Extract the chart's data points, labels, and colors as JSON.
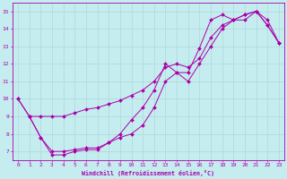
{
  "title": "",
  "xlabel": "Windchill (Refroidissement éolien,°C)",
  "ylabel": "",
  "xlim": [
    -0.5,
    23.5
  ],
  "ylim": [
    6.5,
    15.5
  ],
  "xticks": [
    0,
    1,
    2,
    3,
    4,
    5,
    6,
    7,
    8,
    9,
    10,
    11,
    12,
    13,
    14,
    15,
    16,
    17,
    18,
    19,
    20,
    21,
    22,
    23
  ],
  "yticks": [
    7,
    8,
    9,
    10,
    11,
    12,
    13,
    14,
    15
  ],
  "background_color": "#c5ecee",
  "grid_color": "#aed8dc",
  "line_color": "#aa00aa",
  "line1_x": [
    0,
    1,
    2,
    3,
    4,
    5,
    6,
    7,
    8,
    9,
    10,
    11,
    12,
    13,
    14,
    15,
    16,
    17,
    18,
    19,
    20,
    21,
    22,
    23
  ],
  "line1_y": [
    10.0,
    9.0,
    9.0,
    9.0,
    9.0,
    9.2,
    9.4,
    9.5,
    9.7,
    9.9,
    10.2,
    10.5,
    11.0,
    11.8,
    12.0,
    11.8,
    12.3,
    13.5,
    14.2,
    14.5,
    14.8,
    15.0,
    14.2,
    13.2
  ],
  "line2_x": [
    0,
    1,
    2,
    3,
    4,
    5,
    6,
    7,
    8,
    9,
    10,
    11,
    12,
    13,
    14,
    15,
    16,
    17,
    18,
    19,
    20,
    21,
    22,
    23
  ],
  "line2_y": [
    10.0,
    9.0,
    7.8,
    7.0,
    7.0,
    7.1,
    7.2,
    7.2,
    7.5,
    8.0,
    8.8,
    9.5,
    10.5,
    12.0,
    11.5,
    11.5,
    12.9,
    14.5,
    14.8,
    14.5,
    14.8,
    15.0,
    14.2,
    13.2
  ],
  "line3_x": [
    1,
    2,
    3,
    4,
    5,
    6,
    7,
    8,
    9,
    10,
    11,
    12,
    13,
    14,
    15,
    16,
    17,
    18,
    19,
    20,
    21,
    22,
    23
  ],
  "line3_y": [
    9.0,
    7.8,
    6.8,
    6.8,
    7.0,
    7.1,
    7.1,
    7.5,
    7.8,
    8.0,
    8.5,
    9.5,
    11.0,
    11.5,
    11.0,
    12.0,
    13.0,
    14.0,
    14.5,
    14.5,
    15.0,
    14.5,
    13.2
  ]
}
